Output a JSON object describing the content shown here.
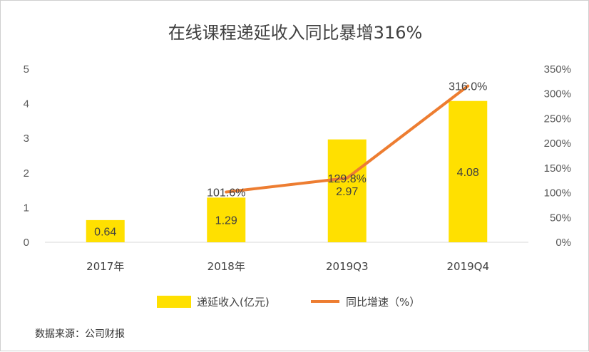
{
  "chart_data": {
    "type": "bar",
    "title": "在线课程递延收入同比暴增316%",
    "categories": [
      "2017年",
      "2018年",
      "2019Q3",
      "2019Q4"
    ],
    "series": [
      {
        "name": "递延收入(亿元)",
        "kind": "bar",
        "axis": "left",
        "values": [
          0.64,
          1.29,
          2.97,
          4.08
        ],
        "data_labels": [
          "0.64",
          "1.29",
          "2.97",
          "4.08"
        ],
        "color": "#FFE000"
      },
      {
        "name": "同比增速（%）",
        "kind": "line",
        "axis": "right",
        "values": [
          null,
          101.6,
          129.8,
          316.0
        ],
        "data_labels": [
          "",
          "101.6%",
          "129.8%",
          "316.0%"
        ],
        "color": "#ED7D31"
      }
    ],
    "y_left": {
      "min": 0,
      "max": 5,
      "ticks": [
        "0",
        "1",
        "2",
        "3",
        "4",
        "5"
      ]
    },
    "y_right": {
      "min": 0,
      "max": 350,
      "ticks": [
        "0%",
        "50%",
        "100%",
        "150%",
        "200%",
        "250%",
        "300%",
        "350%"
      ]
    },
    "legend_position": "bottom",
    "gridlines": false,
    "source": "数据来源：公司财报"
  }
}
